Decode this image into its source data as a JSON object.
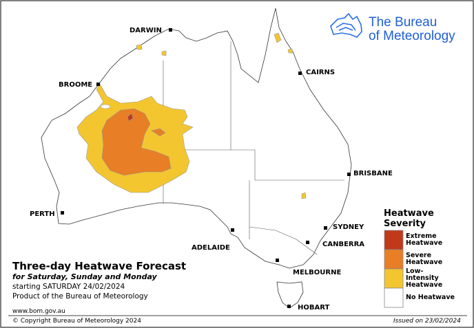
{
  "logo": {
    "line1": "The Bureau",
    "line2": "of Meteorology"
  },
  "title": "Three-day Heatwave Forecast",
  "subtitle": "for Saturday, Sunday and Monday",
  "starting": "starting SATURDAY 24/02/2024",
  "product": "Product of the Bureau of Meteorology",
  "website": "www.bom.gov.au",
  "copyright": "© Copyright Bureau of Meteorology 2024",
  "issued": "Issued on 23/02/2024",
  "cities": [
    "DARWIN",
    "BROOME",
    "CAIRNS",
    "BRISBANE",
    "PERTH",
    "SYDNEY",
    "ADELAIDE",
    "CANBERRA",
    "MELBOURNE",
    "HOBART"
  ],
  "legend": {
    "title": "Heatwave Severity",
    "items": [
      {
        "label": "Extreme Heatwave",
        "color": "#c0391b"
      },
      {
        "label": "Severe Heatwave",
        "color": "#e87e25"
      },
      {
        "label": "Low-Intensity Heatwave",
        "color": "#f3c630"
      },
      {
        "label": "No Heatwave",
        "color": "#ffffff"
      }
    ]
  }
}
